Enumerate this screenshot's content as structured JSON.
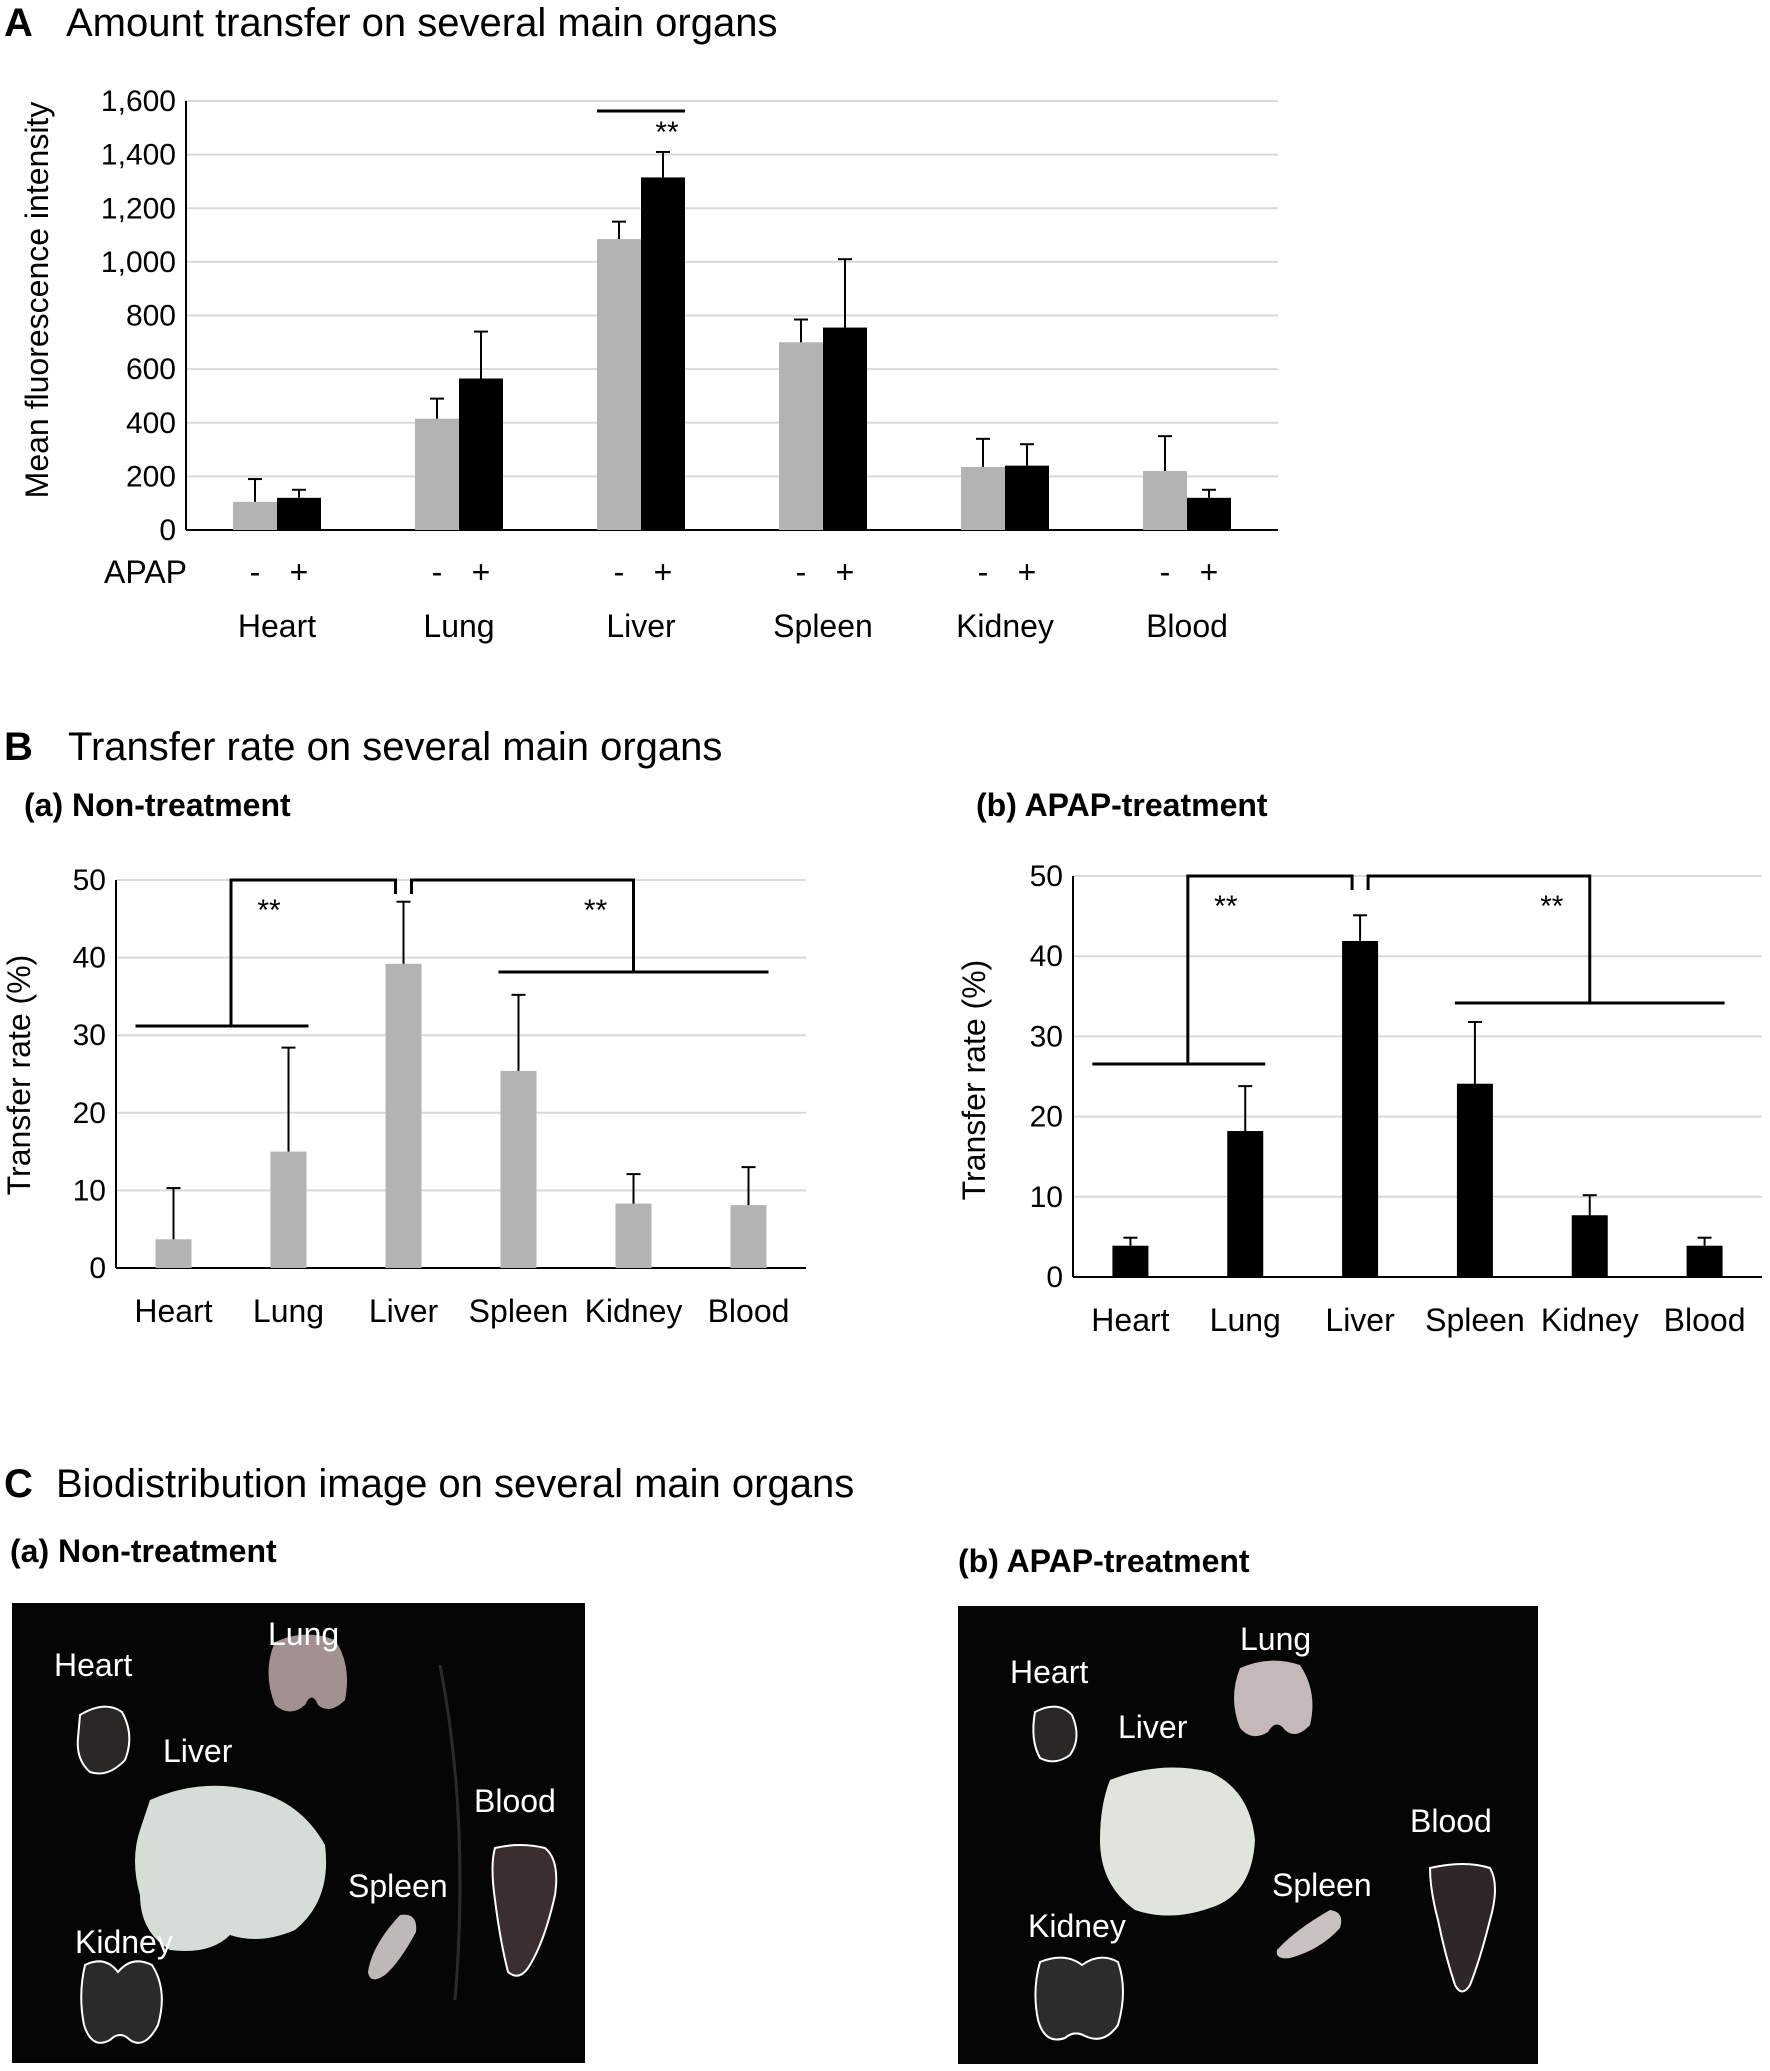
{
  "panel_a": {
    "letter": "A",
    "title": "Amount transfer on several main organs",
    "ylabel": "Mean fluorescence intensity",
    "treatment_label": "APAP",
    "minus": "-",
    "plus": "+",
    "significance": "**"
  },
  "panel_b": {
    "letter": "B",
    "title": "Transfer rate on several main organs",
    "sub_a": "(a) Non-treatment",
    "sub_b": "(b) APAP-treatment",
    "significance": "**"
  },
  "panel_c": {
    "letter": "C",
    "title": "Biodistribution image on several main organs",
    "sub_a": "(a) Non-treatment",
    "sub_b": "(b) APAP-treatment",
    "labels": {
      "heart": "Heart",
      "lung": "Lung",
      "liver": "Liver",
      "blood": "Blood",
      "spleen": "Spleen",
      "kidney": "Kidney"
    },
    "image_background": "#050505"
  },
  "colors": {
    "non_treatment": "#b3b3b3",
    "apap": "#000000",
    "grid": "#d9d9d9"
  },
  "chart_data": [
    {
      "id": "A",
      "type": "bar",
      "title": "Amount transfer on several main organs",
      "ylabel": "Mean fluorescence intensity",
      "categories": [
        "Heart",
        "Lung",
        "Liver",
        "Spleen",
        "Kidney",
        "Blood"
      ],
      "ylim": [
        0,
        1600
      ],
      "yticks": [
        "0",
        "200",
        "400",
        "600",
        "800",
        "1,000",
        "1,200",
        "1,400",
        "1,600"
      ],
      "ytick_values": [
        0,
        200,
        400,
        600,
        800,
        1000,
        1200,
        1400,
        1600
      ],
      "grid": true,
      "series": [
        {
          "key": "minus",
          "label": "-",
          "values": [
            105,
            415,
            1085,
            700,
            235,
            220
          ],
          "errors": [
            85,
            75,
            65,
            85,
            105,
            130
          ]
        },
        {
          "key": "plus",
          "label": "+",
          "values": [
            120,
            565,
            1315,
            755,
            240,
            120
          ],
          "errors": [
            30,
            175,
            95,
            255,
            80,
            30
          ]
        }
      ],
      "annotations": [
        "**"
      ]
    },
    {
      "id": "B-a",
      "type": "bar",
      "title": "(a) Non-treatment",
      "ylabel": "Transfer rate (%)",
      "categories": [
        "Heart",
        "Lung",
        "Liver",
        "Spleen",
        "Kidney",
        "Blood"
      ],
      "ylim": [
        0,
        50
      ],
      "yticks": [
        "0",
        "10",
        "20",
        "30",
        "40",
        "50"
      ],
      "ytick_values": [
        0,
        10,
        20,
        30,
        40,
        50
      ],
      "grid": true,
      "values": [
        3.7,
        15.0,
        39.2,
        25.4,
        8.3,
        8.1
      ],
      "errors": [
        6.6,
        13.4,
        8.0,
        9.8,
        3.8,
        4.9
      ],
      "annotations": [
        "**",
        "**"
      ]
    },
    {
      "id": "B-b",
      "type": "bar",
      "title": "(b) APAP-treatment",
      "ylabel": "Transfer rate (%)",
      "categories": [
        "Heart",
        "Lung",
        "Liver",
        "Spleen",
        "Kidney",
        "Blood"
      ],
      "ylim": [
        0,
        50
      ],
      "yticks": [
        "0",
        "10",
        "20",
        "30",
        "40",
        "50"
      ],
      "ytick_values": [
        0,
        10,
        20,
        30,
        40,
        50
      ],
      "grid": true,
      "values": [
        3.9,
        18.2,
        41.9,
        24.1,
        7.7,
        3.9
      ],
      "errors": [
        1.0,
        5.6,
        3.2,
        7.7,
        2.5,
        1.0
      ],
      "annotations": [
        "**",
        "**"
      ]
    }
  ]
}
